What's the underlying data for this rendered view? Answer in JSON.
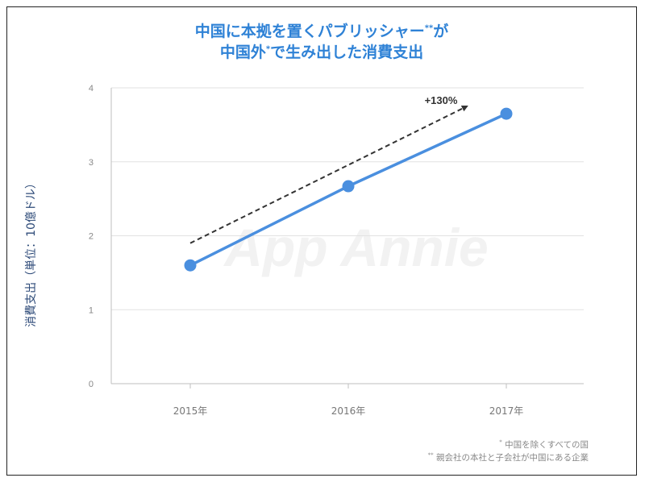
{
  "title": {
    "line1_main": "中国に本拠を置くパブリッシャー",
    "line1_mark": "**",
    "line1_end": "が",
    "line2_main": "中国外",
    "line2_mark": "*",
    "line2_end": "で生み出した消費支出"
  },
  "watermark": "App Annie",
  "chart_data": {
    "type": "line",
    "title": "中国に本拠を置くパブリッシャー**が中国外*で生み出した消費支出",
    "xlabel": "",
    "ylabel": "消費支出（単位：10億ドル）",
    "categories": [
      "2015年",
      "2016年",
      "2017年"
    ],
    "series": [
      {
        "name": "消費支出",
        "values": [
          1.6,
          2.67,
          3.65
        ],
        "color": "#4a8fdf"
      }
    ],
    "ylim": [
      0,
      4
    ],
    "yticks": [
      0,
      1,
      2,
      3,
      4
    ],
    "grid": true,
    "annotations": [
      {
        "text": "+130%",
        "type": "dashed-arrow",
        "from": {
          "x": 0,
          "y": 1.9
        },
        "to": {
          "x": 1.75,
          "y": 3.75
        }
      }
    ]
  },
  "footnotes": [
    {
      "mark": "*",
      "text": "中国を除くすべての国"
    },
    {
      "mark": "**",
      "text": "親会社の本社と子会社が中国にある企業"
    }
  ]
}
